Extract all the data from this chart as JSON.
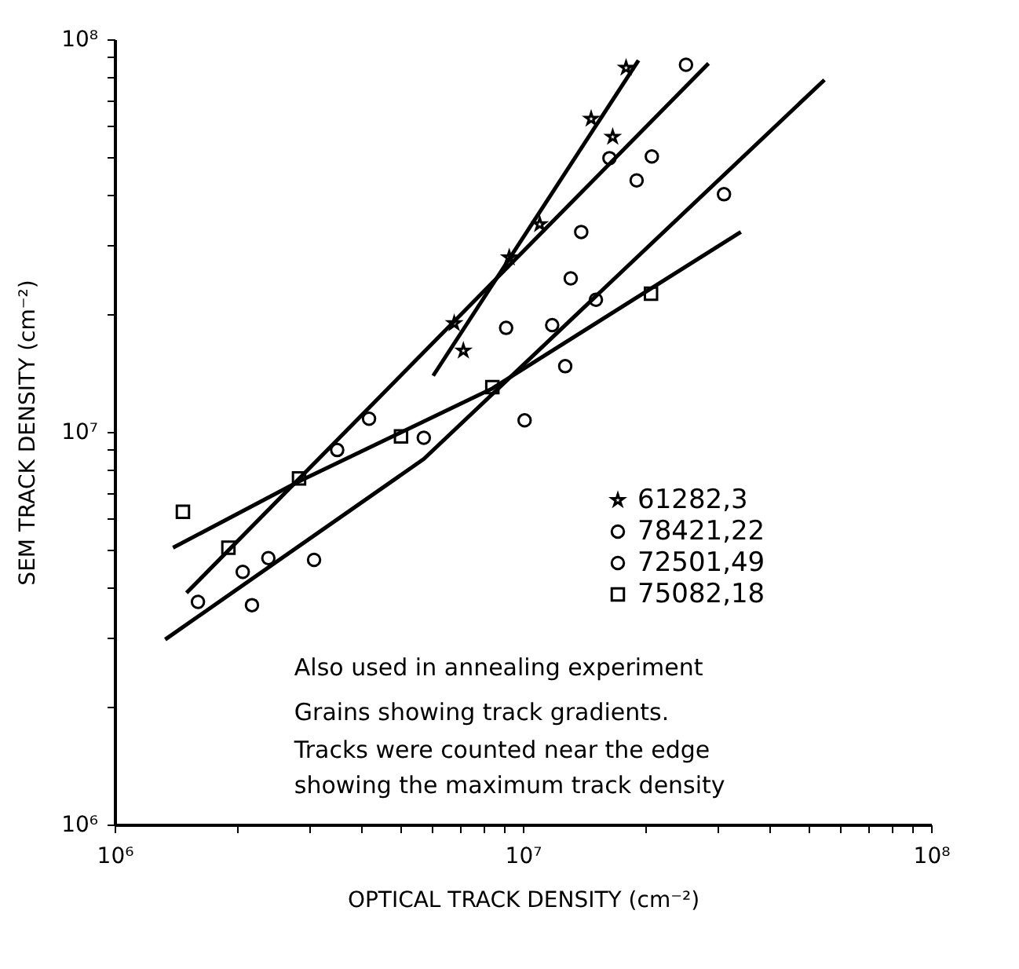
{
  "chart_data": {
    "type": "scatter",
    "xlabel": "OPTICAL TRACK DENSITY (cm⁻²)",
    "ylabel": "SEM TRACK DENSITY (cm⁻²)",
    "log": "xy",
    "grid": false,
    "legend": "right",
    "xlim": [
      1000000,
      100000000
    ],
    "ylim": [
      1000000,
      100000000
    ],
    "xticks": [
      {
        "value": 1000000,
        "label": "10⁶"
      },
      {
        "value": 2000000,
        "label": null
      },
      {
        "value": 3000000,
        "label": null
      },
      {
        "value": 4000000,
        "label": null
      },
      {
        "value": 5000000,
        "label": null
      },
      {
        "value": 6000000,
        "label": null
      },
      {
        "value": 7000000,
        "label": null
      },
      {
        "value": 8000000,
        "label": null
      },
      {
        "value": 9000000,
        "label": null
      },
      {
        "value": 10000000,
        "label": "10⁷"
      },
      {
        "value": 20000000,
        "label": null
      },
      {
        "value": 30000000,
        "label": null
      },
      {
        "value": 40000000,
        "label": null
      },
      {
        "value": 50000000,
        "label": null
      },
      {
        "value": 60000000,
        "label": null
      },
      {
        "value": 70000000,
        "label": null
      },
      {
        "value": 80000000,
        "label": null
      },
      {
        "value": 90000000,
        "label": null
      },
      {
        "value": 100000000,
        "label": "10⁸"
      }
    ],
    "yticks": [
      {
        "value": 1000000,
        "label": "10⁶"
      },
      {
        "value": 2000000,
        "label": null
      },
      {
        "value": 3000000,
        "label": null
      },
      {
        "value": 4000000,
        "label": null
      },
      {
        "value": 5000000,
        "label": null
      },
      {
        "value": 6000000,
        "label": null
      },
      {
        "value": 7000000,
        "label": null
      },
      {
        "value": 8000000,
        "label": null
      },
      {
        "value": 9000000,
        "label": null
      },
      {
        "value": 10000000,
        "label": "10⁷"
      },
      {
        "value": 20000000,
        "label": null
      },
      {
        "value": 30000000,
        "label": null
      },
      {
        "value": 40000000,
        "label": null
      },
      {
        "value": 50000000,
        "label": null
      },
      {
        "value": 60000000,
        "label": null
      },
      {
        "value": 70000000,
        "label": null
      },
      {
        "value": 80000000,
        "label": null
      },
      {
        "value": 90000000,
        "label": null
      },
      {
        "value": 100000000,
        "label": "10⁸"
      }
    ],
    "series": [
      {
        "name": "61282,3",
        "type": "scatter",
        "marker": "star",
        "color": "#000000",
        "x": [
          17900000,
          14700000,
          16600000,
          11000000,
          9260000,
          6790000,
          7150000
        ],
        "values": [
          84600000,
          62700000,
          56400000,
          33800000,
          27800000,
          18900000,
          16100000
        ]
      },
      {
        "name": "78421,22",
        "type": "scatter",
        "marker": "circle",
        "color": "#000000",
        "x": [
          25100000,
          20700000,
          19000000,
          13900000,
          9100000,
          4200000,
          3510000,
          2060000
        ],
        "values": [
          86100000,
          50300000,
          43700000,
          32300000,
          18400000,
          10800000,
          8990000,
          4400000
        ]
      },
      {
        "name": "72501,49",
        "type": "scatter",
        "marker": "circle",
        "color": "#000000",
        "x": [
          31100000,
          16300000,
          13100000,
          15100000,
          11800000,
          12700000,
          10100000,
          5720000,
          2380000,
          3080000,
          1600000,
          2170000
        ],
        "values": [
          40300000,
          49800000,
          24600000,
          21700000,
          18700000,
          14700000,
          10700000,
          9660000,
          4770000,
          4720000,
          3690000,
          3620000
        ]
      },
      {
        "name": "75082,18",
        "type": "scatter",
        "marker": "square",
        "color": "#000000",
        "x": [
          20600000,
          8420000,
          5030000,
          2830000,
          1470000,
          1900000
        ],
        "values": [
          22500000,
          13000000,
          9740000,
          7610000,
          6260000,
          5070000
        ]
      },
      {
        "type": "line",
        "color": "#000000",
        "line_style": "solid",
        "x": [
          6030000,
          19200000
        ],
        "values": [
          13900000,
          88400000
        ]
      },
      {
        "type": "line",
        "color": "#000000",
        "line_style": "solid",
        "x": [
          1500000,
          28500000
        ],
        "values": [
          3890000,
          86800000
        ]
      },
      {
        "type": "line",
        "color": "#000000",
        "line_style": "solid",
        "x": [
          1330000,
          5720000,
          54800000
        ],
        "values": [
          2960000,
          8530000,
          78800000
        ]
      },
      {
        "type": "line",
        "color": "#000000",
        "line_style": "solid",
        "x": [
          1390000,
          2830000,
          8420000,
          34200000
        ],
        "values": [
          5070000,
          7480000,
          12900000,
          32300000
        ]
      }
    ],
    "annotations": [
      "Also used in annealing experiment",
      "Grains showing track gradients.",
      "Tracks were counted near the edge",
      "showing the maximum track density"
    ]
  }
}
